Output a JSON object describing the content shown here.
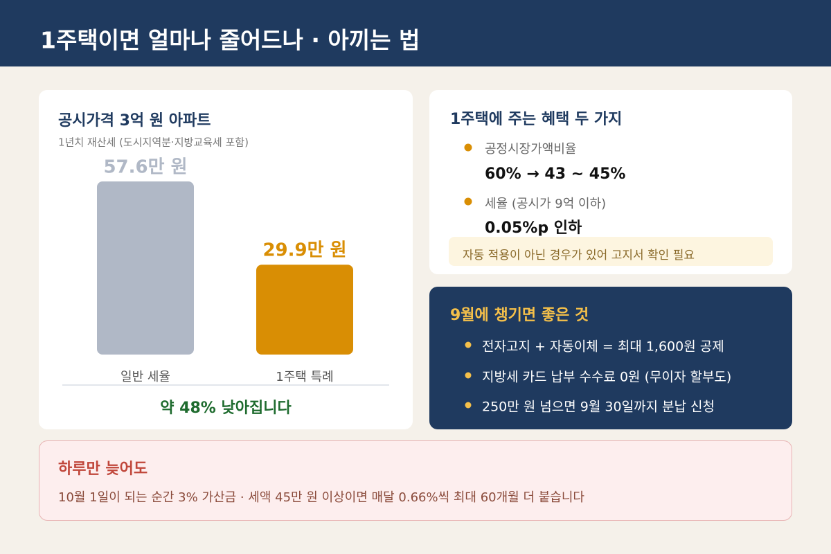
{
  "header": {
    "title": "1주택이면 얼마나 줄어드나 · 아끼는 법"
  },
  "chart_data": {
    "type": "bar",
    "title": "공시가격 3억 원 아파트",
    "subtitle": "1년치 재산세 (도시지역분·지방교육세 포함)",
    "categories": [
      "일반 세율",
      "1주택 특례"
    ],
    "values": [
      57.6,
      29.9
    ],
    "value_labels": [
      "57.6만 원",
      "29.9만 원"
    ],
    "colors": [
      "#b0b8c6",
      "#d98e04"
    ],
    "label_colors": [
      "#b0b8c6",
      "#d98e04"
    ],
    "note": "약 48% 낮아집니다"
  },
  "benefits": {
    "title": "1주택에 주는 혜택 두 가지",
    "items": [
      {
        "label": "공정시장가액비율",
        "value": "60%  →  43 ~ 45%"
      },
      {
        "label": "세율 (공시가 9억 이하)",
        "value": "0.05%p 인하"
      }
    ],
    "note": "자동 적용이 아닌 경우가 있어 고지서 확인 필요"
  },
  "september": {
    "title": "9월에 챙기면 좋은 것",
    "items": [
      "전자고지 + 자동이체 = 최대 1,600원 공제",
      "지방세 카드 납부 수수료 0원 (무이자 할부도)",
      "250만 원 넘으면 9월 30일까지 분납 신청"
    ]
  },
  "warning": {
    "title": "하루만 늦어도",
    "text": "10월 1일이 되는 순간 3% 가산금 · 세액 45만 원 이상이면 매달 0.66%씩 최대 60개월 더 붙습니다"
  }
}
